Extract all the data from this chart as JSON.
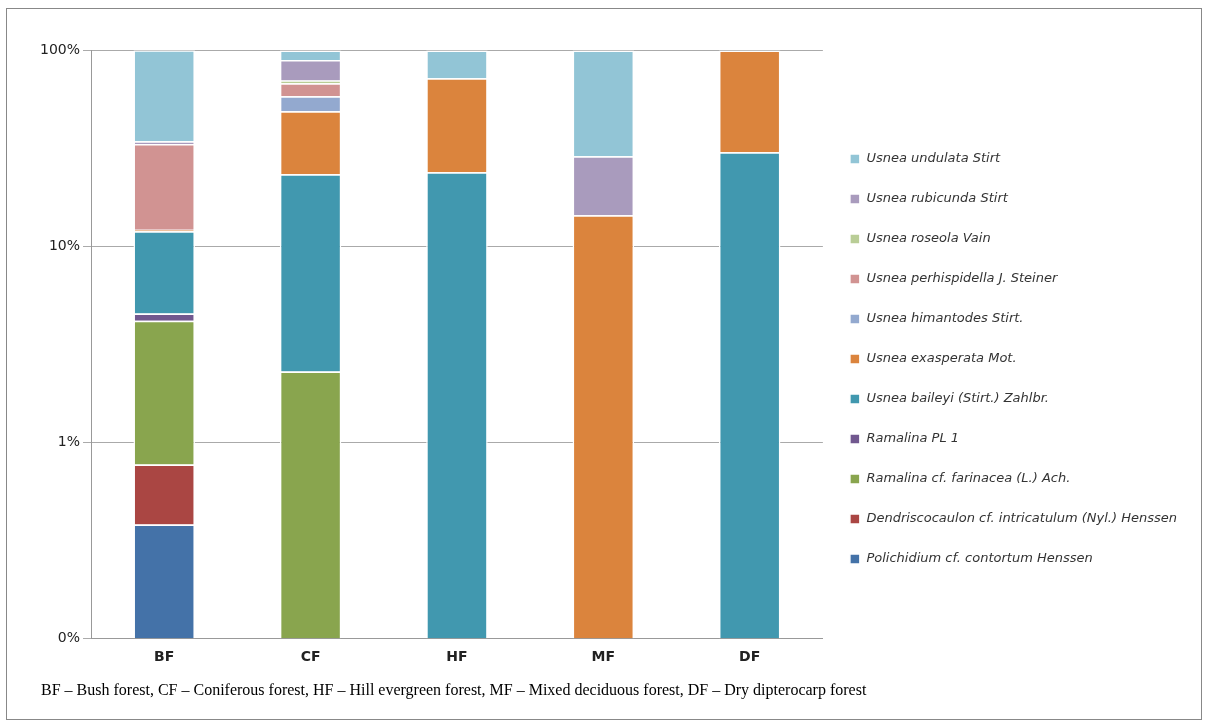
{
  "chart_data": {
    "type": "bar",
    "stacked": true,
    "log": "y",
    "grid": "y",
    "legend": "right",
    "categories": [
      "BF",
      "CF",
      "HF",
      "MF",
      "DF"
    ],
    "ylim": [
      0.1,
      100
    ],
    "yticks": [
      {
        "value": 0.1,
        "label": "0%"
      },
      {
        "value": 1,
        "label": "1%"
      },
      {
        "value": 10,
        "label": "10%"
      },
      {
        "value": 100,
        "label": "100%"
      }
    ],
    "series": [
      {
        "name": "Polichidium cf. contortum Henssen",
        "color": "#4472a8",
        "values": [
          0.38,
          null,
          null,
          null,
          null
        ]
      },
      {
        "name": "Dendriscocaulon cf. intricatulum (Nyl.) Henssen",
        "color": "#aa4643",
        "values": [
          0.39,
          null,
          null,
          null,
          null
        ]
      },
      {
        "name": "Ramalina cf. farinacea (L.) Ach.",
        "color": "#89a54e",
        "values": [
          3.4,
          2.3,
          null,
          null,
          null
        ]
      },
      {
        "name": "Ramalina PL 1",
        "color": "#71588f",
        "values": [
          0.37,
          null,
          null,
          null,
          null
        ]
      },
      {
        "name": "Usnea baileyi (Stirt.) Zahlbr.",
        "color": "#4198af",
        "values": [
          7.4,
          21,
          23.9,
          null,
          30.2
        ]
      },
      {
        "name": "Usnea exasperata Mot.",
        "color": "#db843d",
        "values": [
          0.2,
          25.6,
          48.1,
          14.4,
          69.8
        ]
      },
      {
        "name": "Usnea himantodes Stirt.",
        "color": "#93a9cf",
        "values": [
          null,
          9.5,
          null,
          null,
          null
        ]
      },
      {
        "name": "Usnea perhispidella J. Steiner",
        "color": "#d19392",
        "values": [
          21.1,
          9.6,
          null,
          null,
          null
        ]
      },
      {
        "name": "Usnea roseola Vain",
        "color": "#b9cd96",
        "values": [
          null,
          2.3,
          null,
          null,
          null
        ]
      },
      {
        "name": "Usnea rubicunda Stirt",
        "color": "#a99bbd",
        "values": [
          1.1,
          19.1,
          null,
          14.4,
          null
        ]
      },
      {
        "name": "Usnea undulata Stirt",
        "color": "#92c5d6",
        "values": [
          65.7,
          10.6,
          28,
          71.2,
          null
        ]
      }
    ],
    "annotations": [
      "BF – Bush forest, CF – Coniferous forest, HF – Hill evergreen forest, MF – Mixed deciduous forest, DF – Dry dipterocarp forest"
    ]
  }
}
